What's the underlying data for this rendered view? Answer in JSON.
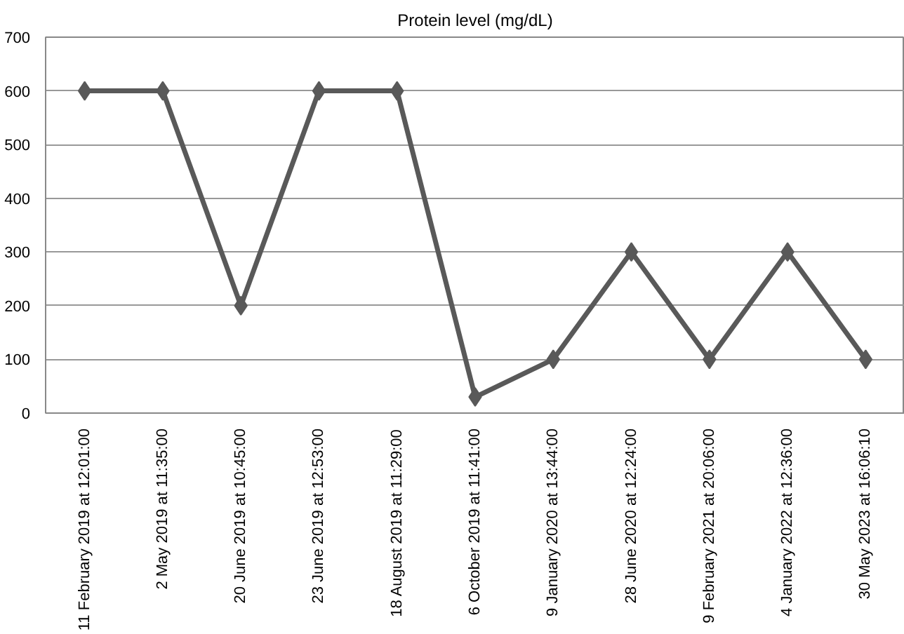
{
  "chart_data": {
    "type": "line",
    "title": "Protein level (mg/dL)",
    "categories": [
      "11 February 2019 at 12:01:00",
      "2 May 2019 at 11:35:00",
      "20 June 2019 at 10:45:00",
      "23 June 2019 at 12:53:00",
      "18 August 2019 at 11:29:00",
      "6 October 2019 at 11:41:00",
      "9 January 2020 at 13:44:00",
      "28 June 2020 at 12:24:00",
      "9 February 2021 at 20:06:00",
      "4 January 2022 at 12:36:00",
      "30 May 2023 at 16:06:10"
    ],
    "series": [
      {
        "color": "#595959",
        "values": [
          600,
          600,
          200,
          600,
          600,
          30,
          100,
          300,
          100,
          300,
          100
        ]
      }
    ],
    "ylim": [
      0,
      700
    ],
    "yticks": [
      0,
      100,
      200,
      300,
      400,
      500,
      600,
      700
    ],
    "grid": "y",
    "marker": "diamond",
    "line_style": "solid"
  }
}
